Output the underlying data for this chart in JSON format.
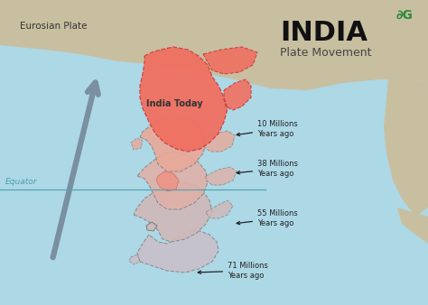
{
  "title": "INDIA",
  "subtitle": "Plate Movement",
  "bg_color": "#add8e6",
  "land_top_color": "#c8bfa0",
  "land_right_color": "#c8bfa0",
  "india_today_color": "#f07060",
  "india_today_label": "India Today",
  "eurosian_label": "Eurosian Plate",
  "equator_label": "Equator",
  "arrow_color": "#7a8fa0",
  "logo_color": "#2d8a3a",
  "dashed_color": "#555555",
  "annot_color": "#222222",
  "title_color": "#111111",
  "subtitle_color": "#444444",
  "equator_color": "#4aa0b0"
}
